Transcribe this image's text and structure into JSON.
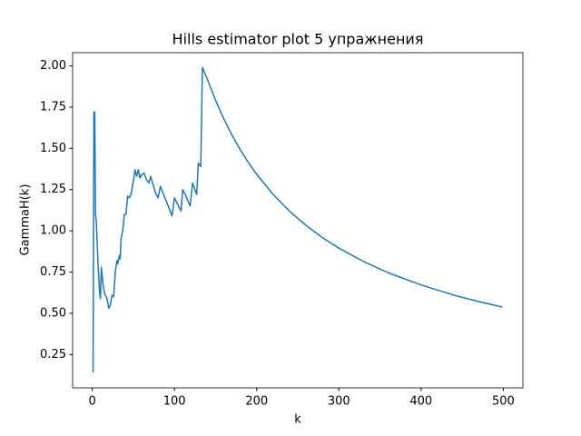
{
  "chart_data": {
    "type": "line",
    "title": "Hills estimator plot 5 упражнения",
    "x_label": "k",
    "y_label": "GammaH(k)",
    "color": "#1f77b4",
    "x": [
      1,
      2,
      3,
      4,
      5,
      7,
      9,
      10,
      11,
      13,
      15,
      18,
      20,
      22,
      24,
      26,
      28,
      30,
      31,
      33,
      34,
      35,
      37,
      39,
      41,
      43,
      45,
      47,
      50,
      52,
      54,
      56,
      58,
      60,
      63,
      66,
      69,
      71,
      74,
      77,
      80,
      83,
      86,
      90,
      94,
      97,
      100,
      103,
      108,
      110,
      114,
      119,
      122,
      127,
      129,
      132,
      134,
      140,
      150,
      160,
      170,
      180,
      190,
      200,
      220,
      240,
      260,
      280,
      300,
      330,
      360,
      400,
      440,
      470,
      499
    ],
    "values": [
      0.14,
      1.72,
      1.72,
      1.1,
      1.05,
      0.8,
      0.62,
      0.59,
      0.78,
      0.68,
      0.62,
      0.59,
      0.53,
      0.55,
      0.61,
      0.6,
      0.75,
      0.82,
      0.8,
      0.85,
      0.83,
      0.95,
      1.0,
      1.1,
      1.1,
      1.21,
      1.2,
      1.22,
      1.3,
      1.37,
      1.33,
      1.37,
      1.32,
      1.34,
      1.35,
      1.31,
      1.29,
      1.33,
      1.28,
      1.23,
      1.2,
      1.27,
      1.23,
      1.18,
      1.13,
      1.09,
      1.2,
      1.17,
      1.12,
      1.25,
      1.21,
      1.15,
      1.29,
      1.22,
      1.41,
      1.39,
      1.99,
      1.919,
      1.791,
      1.679,
      1.58,
      1.492,
      1.414,
      1.343,
      1.221,
      1.119,
      1.033,
      0.959,
      0.895,
      0.814,
      0.746,
      0.672,
      0.61,
      0.571,
      0.538
    ],
    "xlim": [
      -23.9,
      523.9
    ],
    "xticks": [
      0,
      100,
      200,
      300,
      400,
      500
    ],
    "ylim": [
      0.048,
      2.08
    ],
    "yticks": [
      {
        "value": 0.25,
        "label": "0.25"
      },
      {
        "value": 0.5,
        "label": "0.50"
      },
      {
        "value": 0.75,
        "label": "0.75"
      },
      {
        "value": 1,
        "label": "1.00"
      },
      {
        "value": 1.25,
        "label": "1.25"
      },
      {
        "value": 1.5,
        "label": "1.50"
      },
      {
        "value": 1.75,
        "label": "1.75"
      },
      {
        "value": 2,
        "label": "2.00"
      }
    ]
  }
}
